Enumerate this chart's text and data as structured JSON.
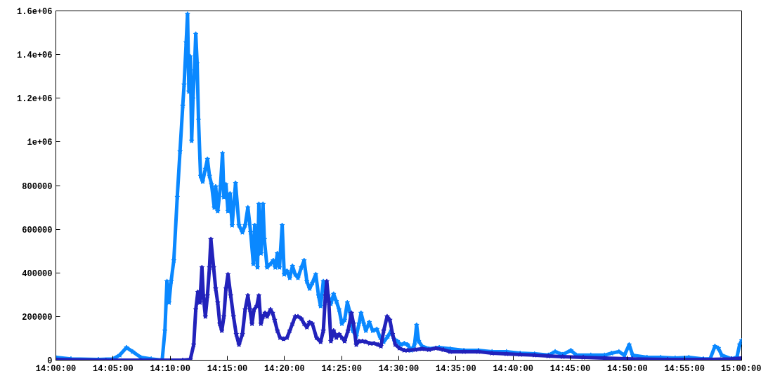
{
  "chart_data": {
    "type": "line",
    "marker": "star",
    "line_style": "solid",
    "grid": false,
    "xlim": [
      14.0,
      15.0
    ],
    "ylim": [
      0,
      1600000
    ],
    "xticks": [
      {
        "value": 14.0,
        "label": "14:00:00"
      },
      {
        "value": 14.0833,
        "label": "14:05:00"
      },
      {
        "value": 14.1667,
        "label": "14:10:00"
      },
      {
        "value": 14.25,
        "label": "14:15:00"
      },
      {
        "value": 14.3333,
        "label": "14:20:00"
      },
      {
        "value": 14.4167,
        "label": "14:25:00"
      },
      {
        "value": 14.5,
        "label": "14:30:00"
      },
      {
        "value": 14.5833,
        "label": "14:35:00"
      },
      {
        "value": 14.6667,
        "label": "14:40:00"
      },
      {
        "value": 14.75,
        "label": "14:45:00"
      },
      {
        "value": 14.8333,
        "label": "14:50:00"
      },
      {
        "value": 14.9167,
        "label": "14:55:00"
      },
      {
        "value": 15.0,
        "label": "15:00:00"
      }
    ],
    "yticks": [
      0,
      200000,
      400000,
      600000,
      800000,
      {
        "value": 1000000,
        "label": "1e+06"
      },
      {
        "value": 1200000,
        "label": "1.2e+06"
      },
      {
        "value": 1400000,
        "label": "1.4e+06"
      },
      {
        "value": 1600000,
        "label": "1.6e+06"
      }
    ],
    "series": [
      {
        "color": "#0a88ff",
        "x": [
          14.0,
          14.022,
          14.062,
          14.083,
          14.093,
          14.103,
          14.112,
          14.124,
          14.139,
          14.155,
          14.159,
          14.162,
          14.165,
          14.168,
          14.172,
          14.177,
          14.181,
          14.185,
          14.187,
          14.19,
          14.192,
          14.194,
          14.196,
          14.198,
          14.2,
          14.202,
          14.204,
          14.206,
          14.208,
          14.211,
          14.214,
          14.218,
          14.221,
          14.224,
          14.227,
          14.231,
          14.233,
          14.236,
          14.24,
          14.243,
          14.245,
          14.248,
          14.251,
          14.254,
          14.257,
          14.262,
          14.267,
          14.272,
          14.276,
          14.28,
          14.284,
          14.288,
          14.29,
          14.294,
          14.296,
          14.299,
          14.302,
          14.304,
          14.308,
          14.313,
          14.317,
          14.32,
          14.323,
          14.326,
          14.33,
          14.333,
          14.337,
          14.341,
          14.345,
          14.349,
          14.353,
          14.358,
          14.362,
          14.366,
          14.37,
          14.374,
          14.379,
          14.383,
          14.386,
          14.39,
          14.393,
          14.397,
          14.401,
          14.405,
          14.409,
          14.413,
          14.417,
          14.421,
          14.425,
          14.429,
          14.433,
          14.438,
          14.442,
          14.445,
          14.449,
          14.452,
          14.457,
          14.462,
          14.468,
          14.473,
          14.478,
          14.484,
          14.489,
          14.493,
          14.498,
          14.503,
          14.508,
          14.513,
          14.518,
          14.523,
          14.526,
          14.529,
          14.534,
          14.544,
          14.559,
          14.575,
          14.595,
          14.616,
          14.636,
          14.657,
          14.677,
          14.698,
          14.718,
          14.728,
          14.739,
          14.751,
          14.759,
          14.78,
          14.8,
          14.81,
          14.821,
          14.829,
          14.836,
          14.841,
          14.862,
          14.882,
          14.903,
          14.923,
          14.944,
          14.954,
          14.961,
          14.966,
          14.971,
          14.985,
          14.993,
          14.997,
          15.0
        ],
        "values": [
          13000,
          6000,
          3000,
          6000,
          23000,
          58000,
          39000,
          13000,
          6000,
          0,
          135000,
          361000,
          264000,
          361000,
          457000,
          747000,
          956000,
          1165000,
          1262000,
          1455000,
          1585000,
          1230000,
          1391000,
          1005000,
          1198000,
          1327000,
          1494000,
          1359000,
          1101000,
          844000,
          818000,
          876000,
          921000,
          844000,
          805000,
          699000,
          795000,
          683000,
          795000,
          947000,
          747000,
          805000,
          683000,
          763000,
          618000,
          811000,
          618000,
          586000,
          618000,
          699000,
          586000,
          441000,
          618000,
          425000,
          715000,
          489000,
          715000,
          554000,
          425000,
          441000,
          457000,
          425000,
          489000,
          425000,
          618000,
          393000,
          409000,
          377000,
          431000,
          393000,
          377000,
          425000,
          457000,
          361000,
          328000,
          354000,
          393000,
          296000,
          248000,
          361000,
          319000,
          296000,
          258000,
          303000,
          270000,
          232000,
          167000,
          184000,
          264000,
          216000,
          135000,
          109000,
          167000,
          216000,
          167000,
          135000,
          174000,
          135000,
          142000,
          103000,
          84000,
          109000,
          135000,
          97000,
          87000,
          71000,
          77000,
          71000,
          45000,
          71000,
          161000,
          87000,
          64000,
          52000,
          58000,
          52000,
          45000,
          45000,
          39000,
          39000,
          32000,
          29000,
          23000,
          39000,
          26000,
          45000,
          23000,
          23000,
          23000,
          32000,
          39000,
          23000,
          71000,
          23000,
          13000,
          13000,
          10000,
          13000,
          6000,
          6000,
          64000,
          55000,
          23000,
          6000,
          13000,
          71000,
          90000
        ]
      },
      {
        "color": "#2222bb",
        "x": [
          14.0,
          14.073,
          14.124,
          14.185,
          14.196,
          14.201,
          14.204,
          14.207,
          14.21,
          14.213,
          14.215,
          14.218,
          14.221,
          14.224,
          14.226,
          14.23,
          14.233,
          14.236,
          14.239,
          14.242,
          14.245,
          14.248,
          14.251,
          14.255,
          14.259,
          14.263,
          14.267,
          14.272,
          14.276,
          14.28,
          14.283,
          14.286,
          14.289,
          14.293,
          14.296,
          14.299,
          14.302,
          14.305,
          14.308,
          14.313,
          14.316,
          14.319,
          14.323,
          14.327,
          14.332,
          14.337,
          14.341,
          14.345,
          14.349,
          14.353,
          14.358,
          14.362,
          14.366,
          14.37,
          14.374,
          14.38,
          14.386,
          14.39,
          14.393,
          14.395,
          14.398,
          14.401,
          14.405,
          14.409,
          14.413,
          14.417,
          14.421,
          14.426,
          14.431,
          14.434,
          14.438,
          14.442,
          14.447,
          14.452,
          14.458,
          14.464,
          14.47,
          14.474,
          14.478,
          14.483,
          14.487,
          14.491,
          14.495,
          14.501,
          14.508,
          14.513,
          14.524,
          14.534,
          14.544,
          14.554,
          14.565,
          14.575,
          14.595,
          14.616,
          14.636,
          14.657,
          14.677,
          14.698,
          14.718,
          14.739,
          14.769,
          14.8,
          14.841,
          14.892,
          14.944,
          14.985,
          15.0
        ],
        "values": [
          3000,
          0,
          0,
          0,
          3000,
          71000,
          232000,
          312000,
          264000,
          425000,
          296000,
          200000,
          296000,
          425000,
          554000,
          425000,
          328000,
          264000,
          167000,
          135000,
          200000,
          328000,
          393000,
          296000,
          200000,
          119000,
          71000,
          119000,
          232000,
          296000,
          232000,
          167000,
          232000,
          248000,
          296000,
          167000,
          200000,
          216000,
          200000,
          232000,
          216000,
          184000,
          135000,
          103000,
          97000,
          103000,
          135000,
          167000,
          200000,
          200000,
          190000,
          167000,
          151000,
          174000,
          167000,
          103000,
          84000,
          135000,
          296000,
          361000,
          264000,
          87000,
          135000,
          103000,
          119000,
          103000,
          87000,
          135000,
          216000,
          167000,
          71000,
          87000,
          87000,
          84000,
          77000,
          77000,
          71000,
          64000,
          135000,
          200000,
          184000,
          119000,
          71000,
          55000,
          45000,
          45000,
          48000,
          52000,
          48000,
          55000,
          48000,
          39000,
          39000,
          39000,
          32000,
          29000,
          26000,
          23000,
          19000,
          16000,
          13000,
          10000,
          6000,
          3000,
          3000,
          6000,
          10000
        ]
      }
    ]
  }
}
